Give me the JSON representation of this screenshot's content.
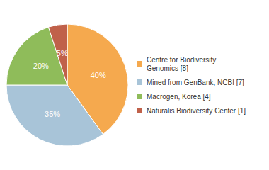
{
  "chart_data": {
    "type": "pie",
    "categories": [
      "Centre for Biodiversity\nGenomics [8]",
      "Mined from GenBank, NCBI [7]",
      "Macrogen, Korea [4]",
      "Naturalis Biodiversity Center [1]"
    ],
    "values": [
      40,
      35,
      20,
      5
    ],
    "value_labels": [
      "40%",
      "35%",
      "20%",
      "5%"
    ],
    "colors": [
      "#F5A94E",
      "#A8C4D8",
      "#8FBC5A",
      "#C0614A"
    ],
    "data_labels": true,
    "legend": "right"
  }
}
